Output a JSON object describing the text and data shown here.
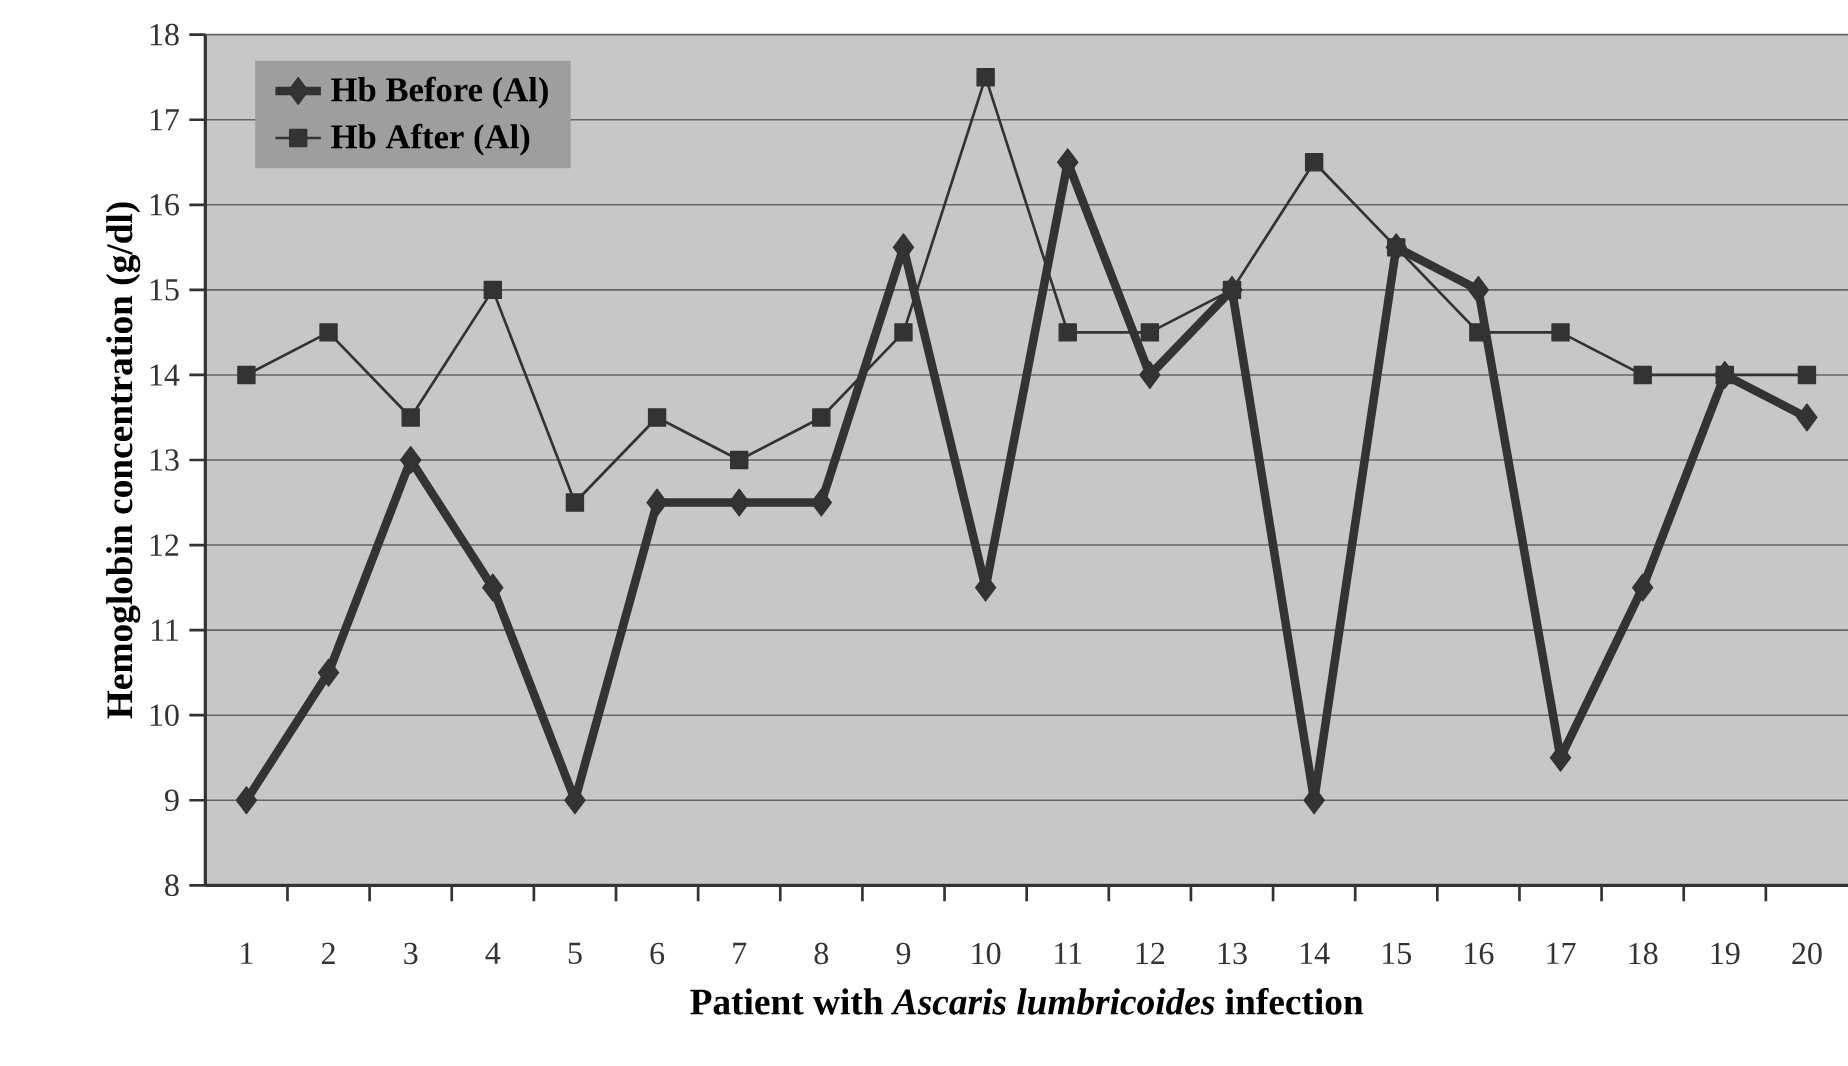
{
  "chart_data": {
    "type": "line",
    "xlabel": "Patient with *Ascaris lumbricoides* infection",
    "ylabel": "Hemoglobin concentration (g/dl)",
    "categories": [
      "1",
      "2",
      "3",
      "4",
      "5",
      "6",
      "7",
      "8",
      "9",
      "10",
      "11",
      "12",
      "13",
      "14",
      "15",
      "16",
      "17",
      "18",
      "19",
      "20"
    ],
    "series": [
      {
        "name": "Hb Before (Al)",
        "color": "#333333",
        "marker": "diamond",
        "values": [
          9,
          10.5,
          13,
          11.5,
          9,
          12.5,
          12.5,
          12.5,
          15.5,
          11.5,
          16.5,
          14,
          15,
          9,
          15.5,
          15,
          9.5,
          11.5,
          14,
          13.5
        ]
      },
      {
        "name": "Hb After (Al)",
        "color": "#333333",
        "marker": "square",
        "values": [
          14,
          14.5,
          13.5,
          15,
          12.5,
          13.5,
          13,
          13.5,
          14.5,
          17.5,
          14.5,
          14.5,
          15,
          16.5,
          15.5,
          14.5,
          14.5,
          14,
          14,
          14
        ]
      }
    ],
    "ylim": [
      8,
      18
    ],
    "yticks": [
      8,
      9,
      10,
      11,
      12,
      13,
      14,
      15,
      16,
      17,
      18
    ],
    "grid": "y",
    "legend": "top left"
  }
}
